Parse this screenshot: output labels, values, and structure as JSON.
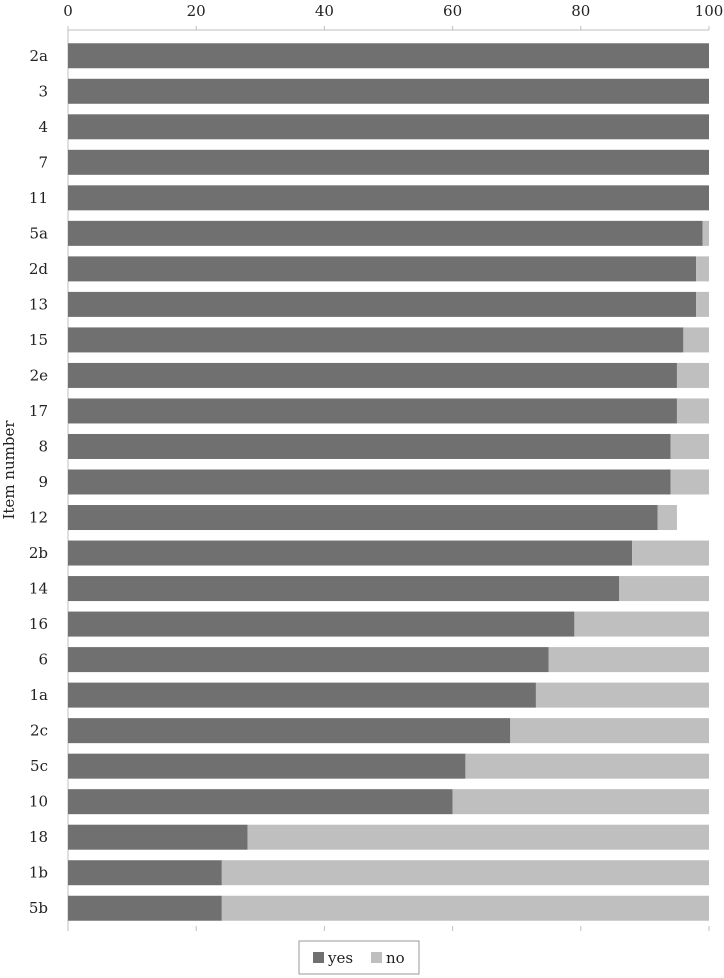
{
  "chart_data": {
    "type": "bar",
    "orientation": "horizontal",
    "stacked": true,
    "ylabel": "Item number",
    "xlabel": "",
    "xlim": [
      0,
      100
    ],
    "xticks": [
      "0",
      "20",
      "40",
      "60",
      "80",
      "100"
    ],
    "xaxis_position": "top",
    "grid": false,
    "legend_position": "bottom",
    "categories": [
      "2a",
      "3",
      "4",
      "7",
      "11",
      "5a",
      "2d",
      "13",
      "15",
      "2e",
      "17",
      "8",
      "9",
      "12",
      "2b",
      "14",
      "16",
      "6",
      "1a",
      "2c",
      "5c",
      "10",
      "18",
      "1b",
      "5b"
    ],
    "series": [
      {
        "name": "yes",
        "color": "#707070",
        "values": [
          100,
          100,
          100,
          100,
          100,
          99,
          98,
          98,
          96,
          95,
          95,
          94,
          94,
          92,
          88,
          86,
          79,
          75,
          73,
          69,
          62,
          60,
          28,
          24,
          24
        ]
      },
      {
        "name": "no",
        "color": "#bfbfbf",
        "values": [
          0,
          0,
          0,
          0,
          0,
          1,
          2,
          2,
          4,
          5,
          5,
          6,
          6,
          3,
          12,
          14,
          21,
          25,
          27,
          31,
          38,
          40,
          72,
          76,
          76
        ]
      }
    ]
  }
}
